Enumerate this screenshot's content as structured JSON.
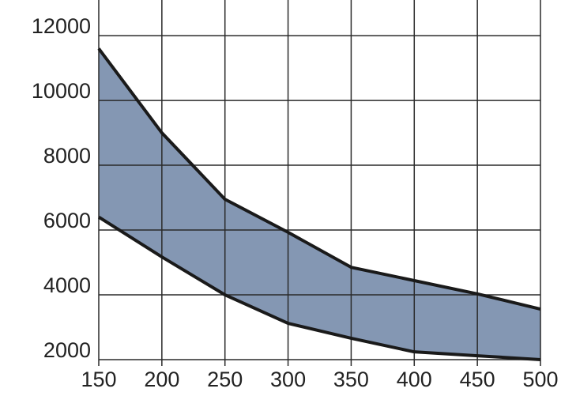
{
  "chart_data": {
    "type": "range",
    "x": [
      150,
      200,
      250,
      300,
      350,
      400,
      450,
      500
    ],
    "series": [
      {
        "color": "#1a1a1a",
        "values": [
          6400,
          5170,
          4000,
          3120,
          2660,
          2240,
          2120,
          2000
        ]
      },
      {
        "color": "#1a1a1a",
        "values": [
          11600,
          9000,
          6950,
          5930,
          4850,
          4440,
          4030,
          3560
        ]
      }
    ],
    "fill": "#8497b3",
    "xlim": [
      150,
      500
    ],
    "xticks": [
      150,
      200,
      250,
      300,
      350,
      400,
      450,
      500
    ],
    "ylim": [
      2000,
      13100
    ],
    "yticks": [
      2000,
      4000,
      6000,
      8000,
      10000,
      12000
    ],
    "grid": true
  }
}
